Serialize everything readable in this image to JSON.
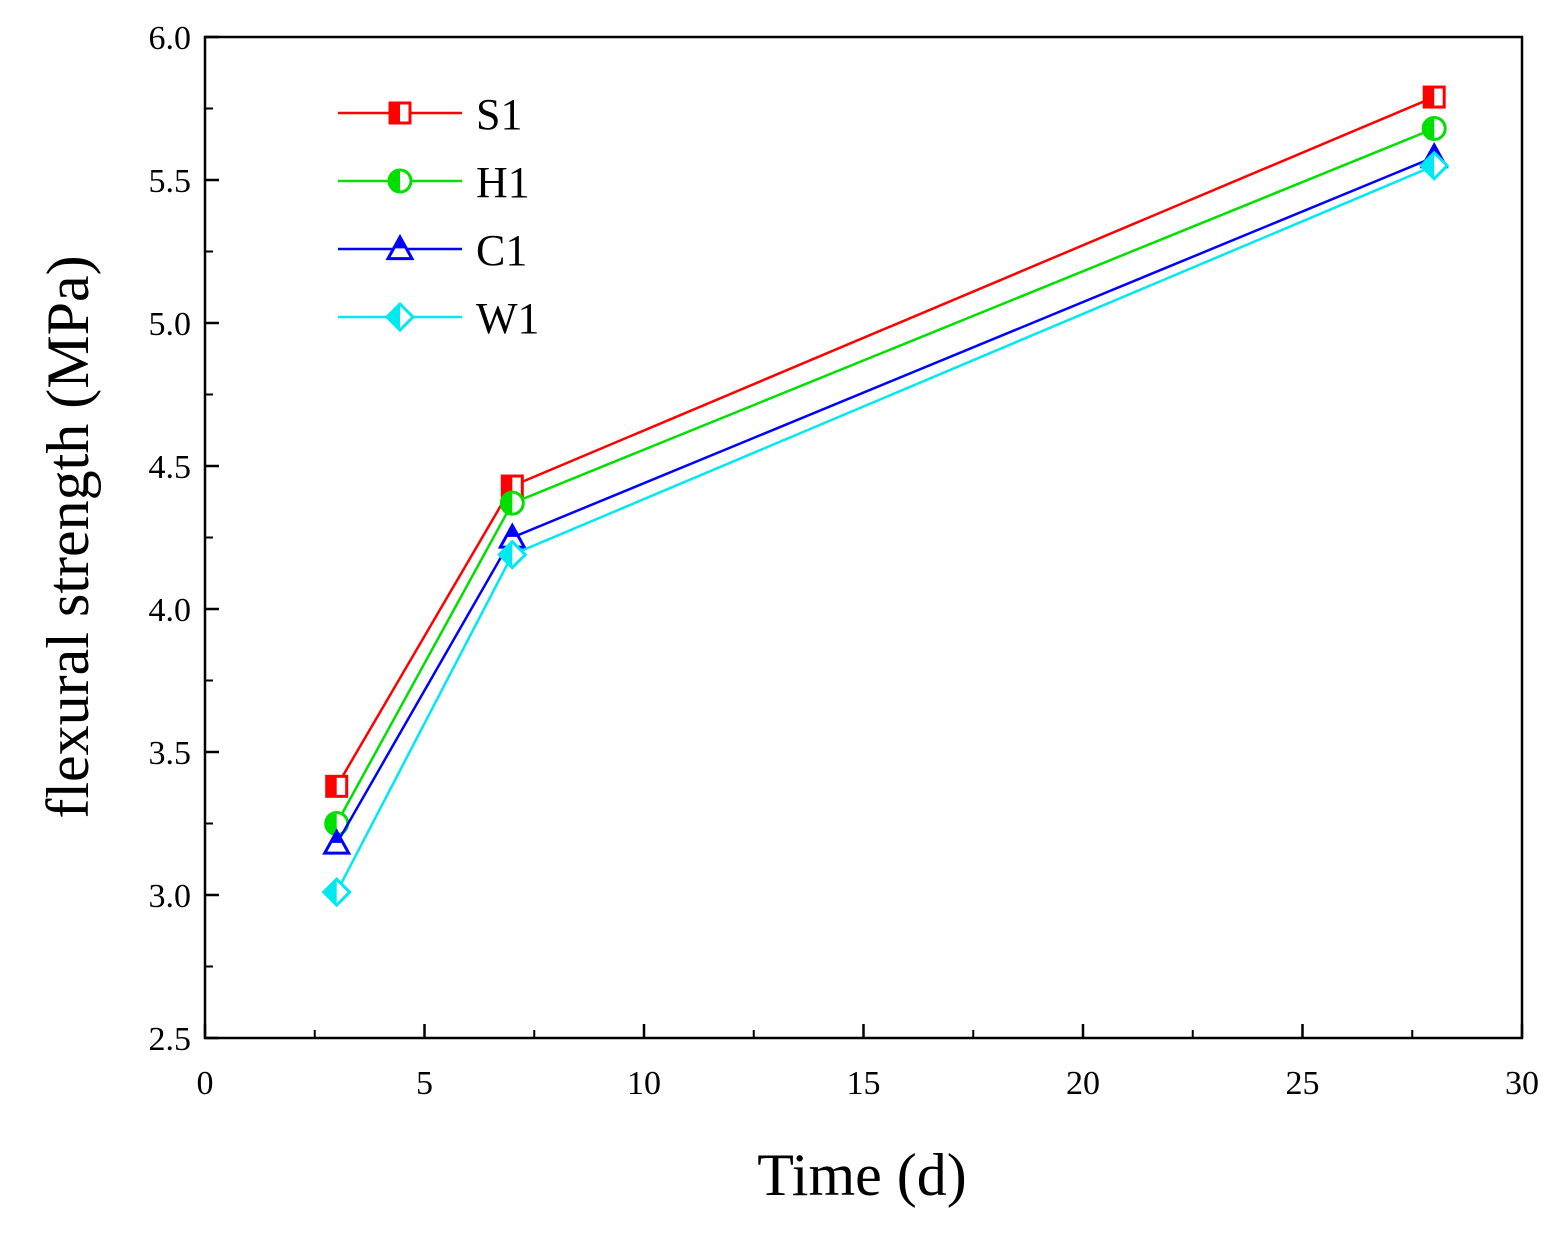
{
  "chart_data": {
    "type": "line",
    "title": "",
    "xlabel": "Time (d)",
    "ylabel": "flexural strength (MPa)",
    "xlim": [
      0,
      30
    ],
    "ylim": [
      2.5,
      6.0
    ],
    "xticks": [
      0,
      5,
      10,
      15,
      20,
      25,
      30
    ],
    "yticks": [
      2.5,
      3.0,
      3.5,
      4.0,
      4.5,
      5.0,
      5.5,
      6.0
    ],
    "xtick_labels": [
      "0",
      "5",
      "10",
      "15",
      "20",
      "25",
      "30"
    ],
    "ytick_labels": [
      "2.5",
      "3.0",
      "3.5",
      "4.0",
      "4.5",
      "5.0",
      "5.5",
      "6.0"
    ],
    "grid": false,
    "legend_position": "top-left",
    "x": [
      3,
      7,
      28
    ],
    "series": [
      {
        "name": "S1",
        "values": [
          3.38,
          4.43,
          5.79
        ],
        "color": "#ff0000",
        "marker": "square"
      },
      {
        "name": "H1",
        "values": [
          3.25,
          4.37,
          5.68
        ],
        "color": "#00e000",
        "marker": "circle"
      },
      {
        "name": "C1",
        "values": [
          3.18,
          4.25,
          5.58
        ],
        "color": "#0000ff",
        "marker": "triangle"
      },
      {
        "name": "W1",
        "values": [
          3.01,
          4.19,
          5.55
        ],
        "color": "#00e8f0",
        "marker": "diamond"
      }
    ]
  }
}
